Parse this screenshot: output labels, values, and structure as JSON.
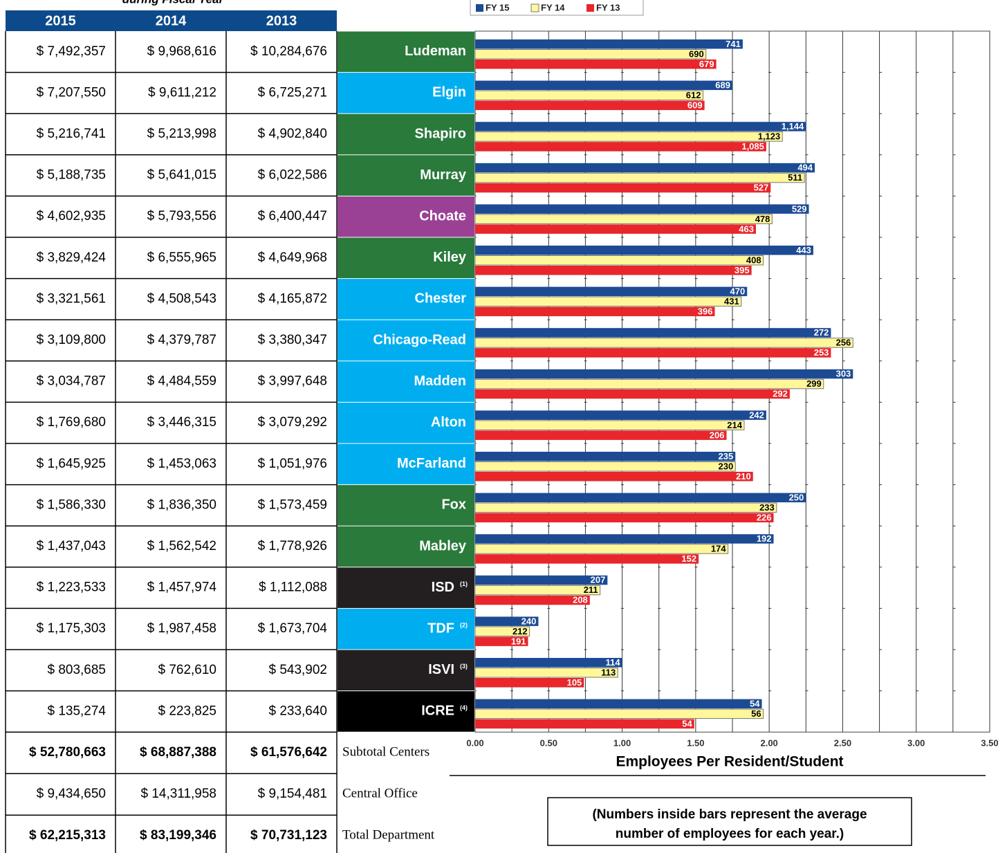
{
  "table": {
    "caption": "during Fiscal Year",
    "columns": [
      "2015",
      "2014",
      "2013"
    ],
    "rows": [
      [
        "$ 7,492,357",
        "$ 9,968,616",
        "$ 10,284,676"
      ],
      [
        "$ 7,207,550",
        "$ 9,611,212",
        "$ 6,725,271"
      ],
      [
        "$ 5,216,741",
        "$ 5,213,998",
        "$ 4,902,840"
      ],
      [
        "$ 5,188,735",
        "$ 5,641,015",
        "$ 6,022,586"
      ],
      [
        "$ 4,602,935",
        "$ 5,793,556",
        "$ 6,400,447"
      ],
      [
        "$ 3,829,424",
        "$ 6,555,965",
        "$ 4,649,968"
      ],
      [
        "$ 3,321,561",
        "$ 4,508,543",
        "$ 4,165,872"
      ],
      [
        "$ 3,109,800",
        "$ 4,379,787",
        "$ 3,380,347"
      ],
      [
        "$ 3,034,787",
        "$ 4,484,559",
        "$ 3,997,648"
      ],
      [
        "$ 1,769,680",
        "$ 3,446,315",
        "$ 3,079,292"
      ],
      [
        "$ 1,645,925",
        "$ 1,453,063",
        "$ 1,051,976"
      ],
      [
        "$ 1,586,330",
        "$ 1,836,350",
        "$ 1,573,459"
      ],
      [
        "$ 1,437,043",
        "$ 1,562,542",
        "$ 1,778,926"
      ],
      [
        "$ 1,223,533",
        "$ 1,457,974",
        "$ 1,112,088"
      ],
      [
        "$ 1,175,303",
        "$ 1,987,458",
        "$ 1,673,704"
      ],
      [
        "$ 803,685",
        "$ 762,610",
        "$ 543,902"
      ],
      [
        "$ 135,274",
        "$ 223,825",
        "$ 233,640"
      ]
    ],
    "summary": [
      {
        "label": "Subtotal Centers",
        "values": [
          "$ 52,780,663",
          "$ 68,887,388",
          "$ 61,576,642"
        ],
        "bold": true
      },
      {
        "label": "Central Office",
        "values": [
          "$ 9,434,650",
          "$ 14,311,958",
          "$ 9,154,481"
        ],
        "bold": false
      },
      {
        "label": "Total Department",
        "values": [
          "$ 62,215,313",
          "$ 83,199,346",
          "$ 70,731,123"
        ],
        "bold": true
      }
    ]
  },
  "chart_data": {
    "type": "bar",
    "orientation": "horizontal",
    "categories": [
      "Ludeman",
      "Elgin",
      "Shapiro",
      "Murray",
      "Choate",
      "Kiley",
      "Chester",
      "Chicago-Read",
      "Madden",
      "Alton",
      "McFarland",
      "Fox",
      "Mabley",
      "ISD",
      "TDF",
      "ISVI",
      "ICRE"
    ],
    "category_notes": [
      null,
      null,
      null,
      null,
      null,
      null,
      null,
      null,
      null,
      null,
      null,
      null,
      null,
      "(1)",
      "(2)",
      "(3)",
      "(4)"
    ],
    "category_colors": [
      "#2a7a3b",
      "#00aeef",
      "#2a7a3b",
      "#2a7a3b",
      "#9a4195",
      "#2a7a3b",
      "#00aeef",
      "#00aeef",
      "#00aeef",
      "#00aeef",
      "#00aeef",
      "#2a7a3b",
      "#2a7a3b",
      "#231f20",
      "#00aeef",
      "#231f20",
      "#000000"
    ],
    "series": [
      {
        "name": "FY 15",
        "color": "#1c4b94",
        "text_color": "#ffffff",
        "values": [
          1.82,
          1.75,
          2.25,
          2.31,
          2.27,
          2.3,
          1.85,
          2.42,
          2.57,
          1.98,
          1.77,
          2.25,
          2.03,
          0.9,
          0.43,
          1.0,
          1.95
        ],
        "counts": [
          "741",
          "689",
          "1,144",
          "494",
          "529",
          "443",
          "470",
          "272",
          "303",
          "242",
          "235",
          "250",
          "192",
          "207",
          "240",
          "114",
          "54"
        ]
      },
      {
        "name": "FY 14",
        "color": "#fff799",
        "text_color": "#000000",
        "values": [
          1.57,
          1.55,
          2.09,
          2.24,
          2.02,
          1.96,
          1.81,
          2.57,
          2.37,
          1.83,
          1.77,
          2.05,
          1.72,
          0.85,
          0.37,
          0.97,
          1.96
        ],
        "counts": [
          "690",
          "612",
          "1,123",
          "511",
          "478",
          "408",
          "431",
          "256",
          "299",
          "214",
          "230",
          "233",
          "174",
          "211",
          "212",
          "113",
          "56"
        ]
      },
      {
        "name": "FY 13",
        "color": "#e8262b",
        "text_color": "#ffffff",
        "values": [
          1.64,
          1.56,
          1.98,
          2.01,
          1.91,
          1.88,
          1.63,
          2.42,
          2.14,
          1.71,
          1.89,
          2.03,
          1.52,
          0.78,
          0.36,
          0.74,
          1.49
        ],
        "counts": [
          "679",
          "609",
          "1,085",
          "527",
          "463",
          "395",
          "396",
          "253",
          "292",
          "206",
          "210",
          "226",
          "152",
          "208",
          "191",
          "105",
          "54"
        ]
      }
    ],
    "xlim": [
      0,
      3.5
    ],
    "xticks": [
      {
        "value": 0,
        "label": "0.00"
      },
      {
        "value": 0.5,
        "label": "0.50"
      },
      {
        "value": 1,
        "label": "1.00"
      },
      {
        "value": 1.5,
        "label": "1.50"
      },
      {
        "value": 2,
        "label": "2.00"
      },
      {
        "value": 2.5,
        "label": "2.50"
      },
      {
        "value": 3,
        "label": "3.00"
      },
      {
        "value": 3.5,
        "label": "3.50"
      }
    ],
    "xgrid": [
      0.25,
      0.75,
      1.25,
      1.75,
      2.25,
      2.75,
      3.25
    ],
    "xlabel": "Employees Per Resident/Student",
    "note": [
      "(Numbers inside bars represent the average",
      "number of employees for each year.)"
    ]
  }
}
